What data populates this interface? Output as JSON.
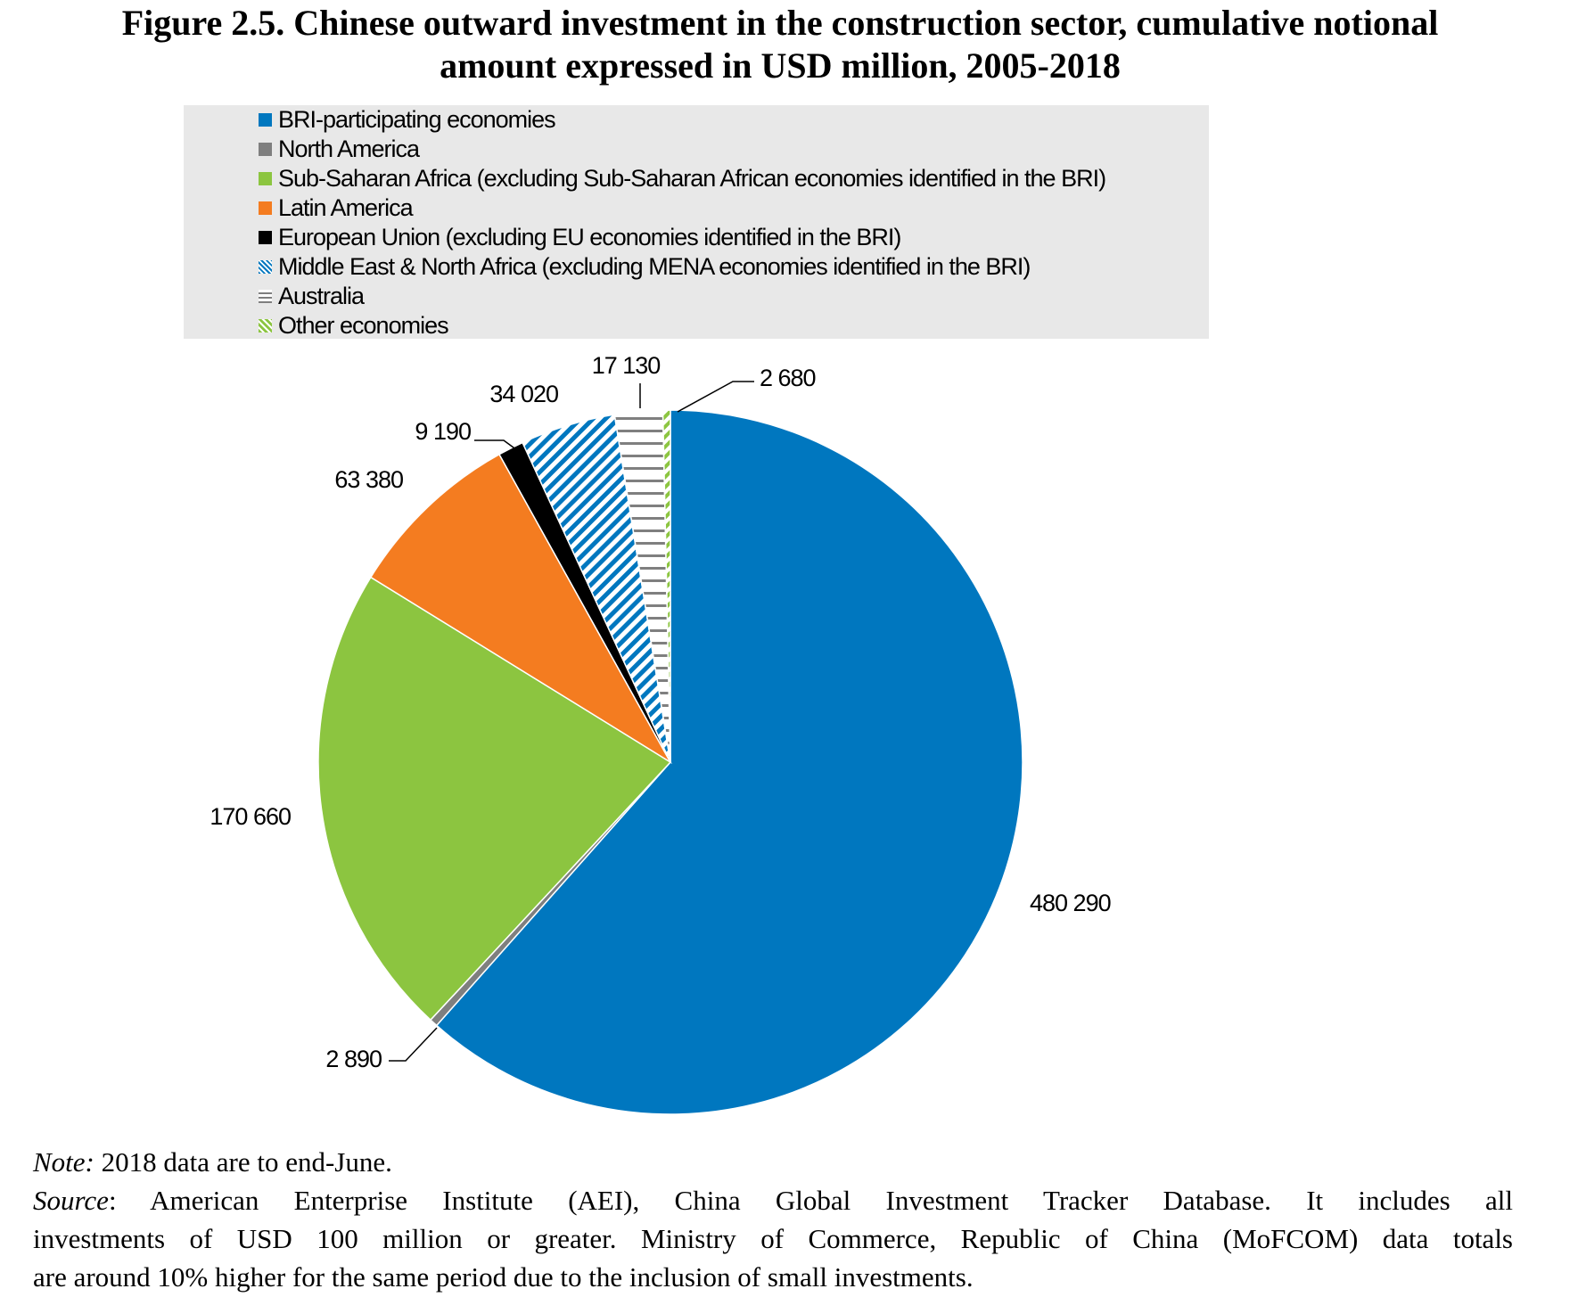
{
  "title": {
    "line1": "Figure 2.5. Chinese outward investment in the construction sector, cumulative notional",
    "line2": "amount expressed in USD million, 2005-2018"
  },
  "legend": [
    "BRI-participating economies",
    "North America",
    "Sub-Saharan Africa (excluding Sub-Saharan African economies identified in the BRI)",
    "Latin America",
    "European Union (excluding EU economies identified in the BRI)",
    "Middle East & North Africa (excluding MENA economies identified in the BRI)",
    "Australia",
    "Other economies"
  ],
  "chart_data": {
    "type": "pie",
    "title": "Figure 2.5. Chinese outward investment in the construction sector, cumulative notional amount expressed in USD million, 2005-2018",
    "unit": "USD million",
    "start_angle": "12 o'clock, clockwise",
    "slices": [
      {
        "name": "BRI-participating economies",
        "value": 480290,
        "label": "480 290",
        "color": "#0077bf",
        "pattern": "solid"
      },
      {
        "name": "North America",
        "value": 2890,
        "label": "2 890",
        "color": "#7f7f7f",
        "pattern": "solid"
      },
      {
        "name": "Sub-Saharan Africa (excluding Sub-Saharan African economies identified in the BRI)",
        "value": 170660,
        "label": "170 660",
        "color": "#8cc540",
        "pattern": "solid"
      },
      {
        "name": "Latin America",
        "value": 63380,
        "label": "63 380",
        "color": "#f47c20",
        "pattern": "solid"
      },
      {
        "name": "European Union (excluding EU economies identified in the BRI)",
        "value": 9190,
        "label": "9 190",
        "color": "#000000",
        "pattern": "solid"
      },
      {
        "name": "Middle East & North Africa (excluding MENA economies identified in the BRI)",
        "value": 34020,
        "label": "34 020",
        "color": "#0077bf",
        "pattern": "diagonal"
      },
      {
        "name": "Australia",
        "value": 17130,
        "label": "17 130",
        "color": "#7f7f7f",
        "pattern": "horizontal"
      },
      {
        "name": "Other economies",
        "value": 2680,
        "label": "2 680",
        "color": "#8cc540",
        "pattern": "dashed"
      }
    ]
  },
  "note": {
    "label": "Note:",
    "text": " 2018 data are to end-June."
  },
  "source": {
    "label": "Source",
    "line1": ": American Enterprise Institute (AEI), China Global Investment Tracker Database. It includes all",
    "line2": "investments of USD 100 million or greater. Ministry of Commerce, Republic of China (MoFCOM) data totals",
    "line3": "are around 10% higher for the same period due to the inclusion of small investments."
  }
}
